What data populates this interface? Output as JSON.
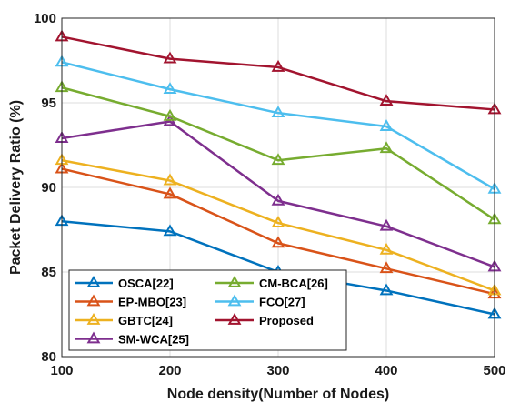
{
  "chart_data": {
    "type": "line",
    "title": "",
    "xlabel": "Node density(Number of Nodes)",
    "ylabel": "Packet Delivery Ratio (%)",
    "x": [
      100,
      200,
      300,
      400,
      500
    ],
    "xlim": [
      100,
      500
    ],
    "ylim": [
      80,
      100
    ],
    "xticks": [
      100,
      200,
      300,
      400,
      500
    ],
    "yticks": [
      80,
      85,
      90,
      95,
      100
    ],
    "grid": true,
    "legend_position": "bottom-left",
    "marker": "triangle",
    "series": [
      {
        "name": "OSCA[22]",
        "color": "#0072BD",
        "values": [
          88.0,
          87.4,
          85.0,
          83.9,
          82.5
        ]
      },
      {
        "name": "EP-MBO[23]",
        "color": "#D95319",
        "values": [
          91.1,
          89.6,
          86.7,
          85.2,
          83.7
        ]
      },
      {
        "name": "GBTC[24]",
        "color": "#EDB120",
        "values": [
          91.6,
          90.4,
          87.9,
          86.3,
          83.9
        ]
      },
      {
        "name": "SM-WCA[25]",
        "color": "#7E2F8E",
        "values": [
          92.9,
          93.9,
          89.2,
          87.7,
          85.3
        ]
      },
      {
        "name": "CM-BCA[26]",
        "color": "#77AC30",
        "values": [
          95.9,
          94.2,
          91.6,
          92.3,
          88.1
        ]
      },
      {
        "name": "FCO[27]",
        "color": "#4DBEEE",
        "values": [
          97.4,
          95.8,
          94.4,
          93.6,
          89.9
        ]
      },
      {
        "name": "Proposed",
        "color": "#A2142F",
        "values": [
          98.9,
          97.6,
          97.1,
          95.1,
          94.6
        ]
      }
    ]
  }
}
